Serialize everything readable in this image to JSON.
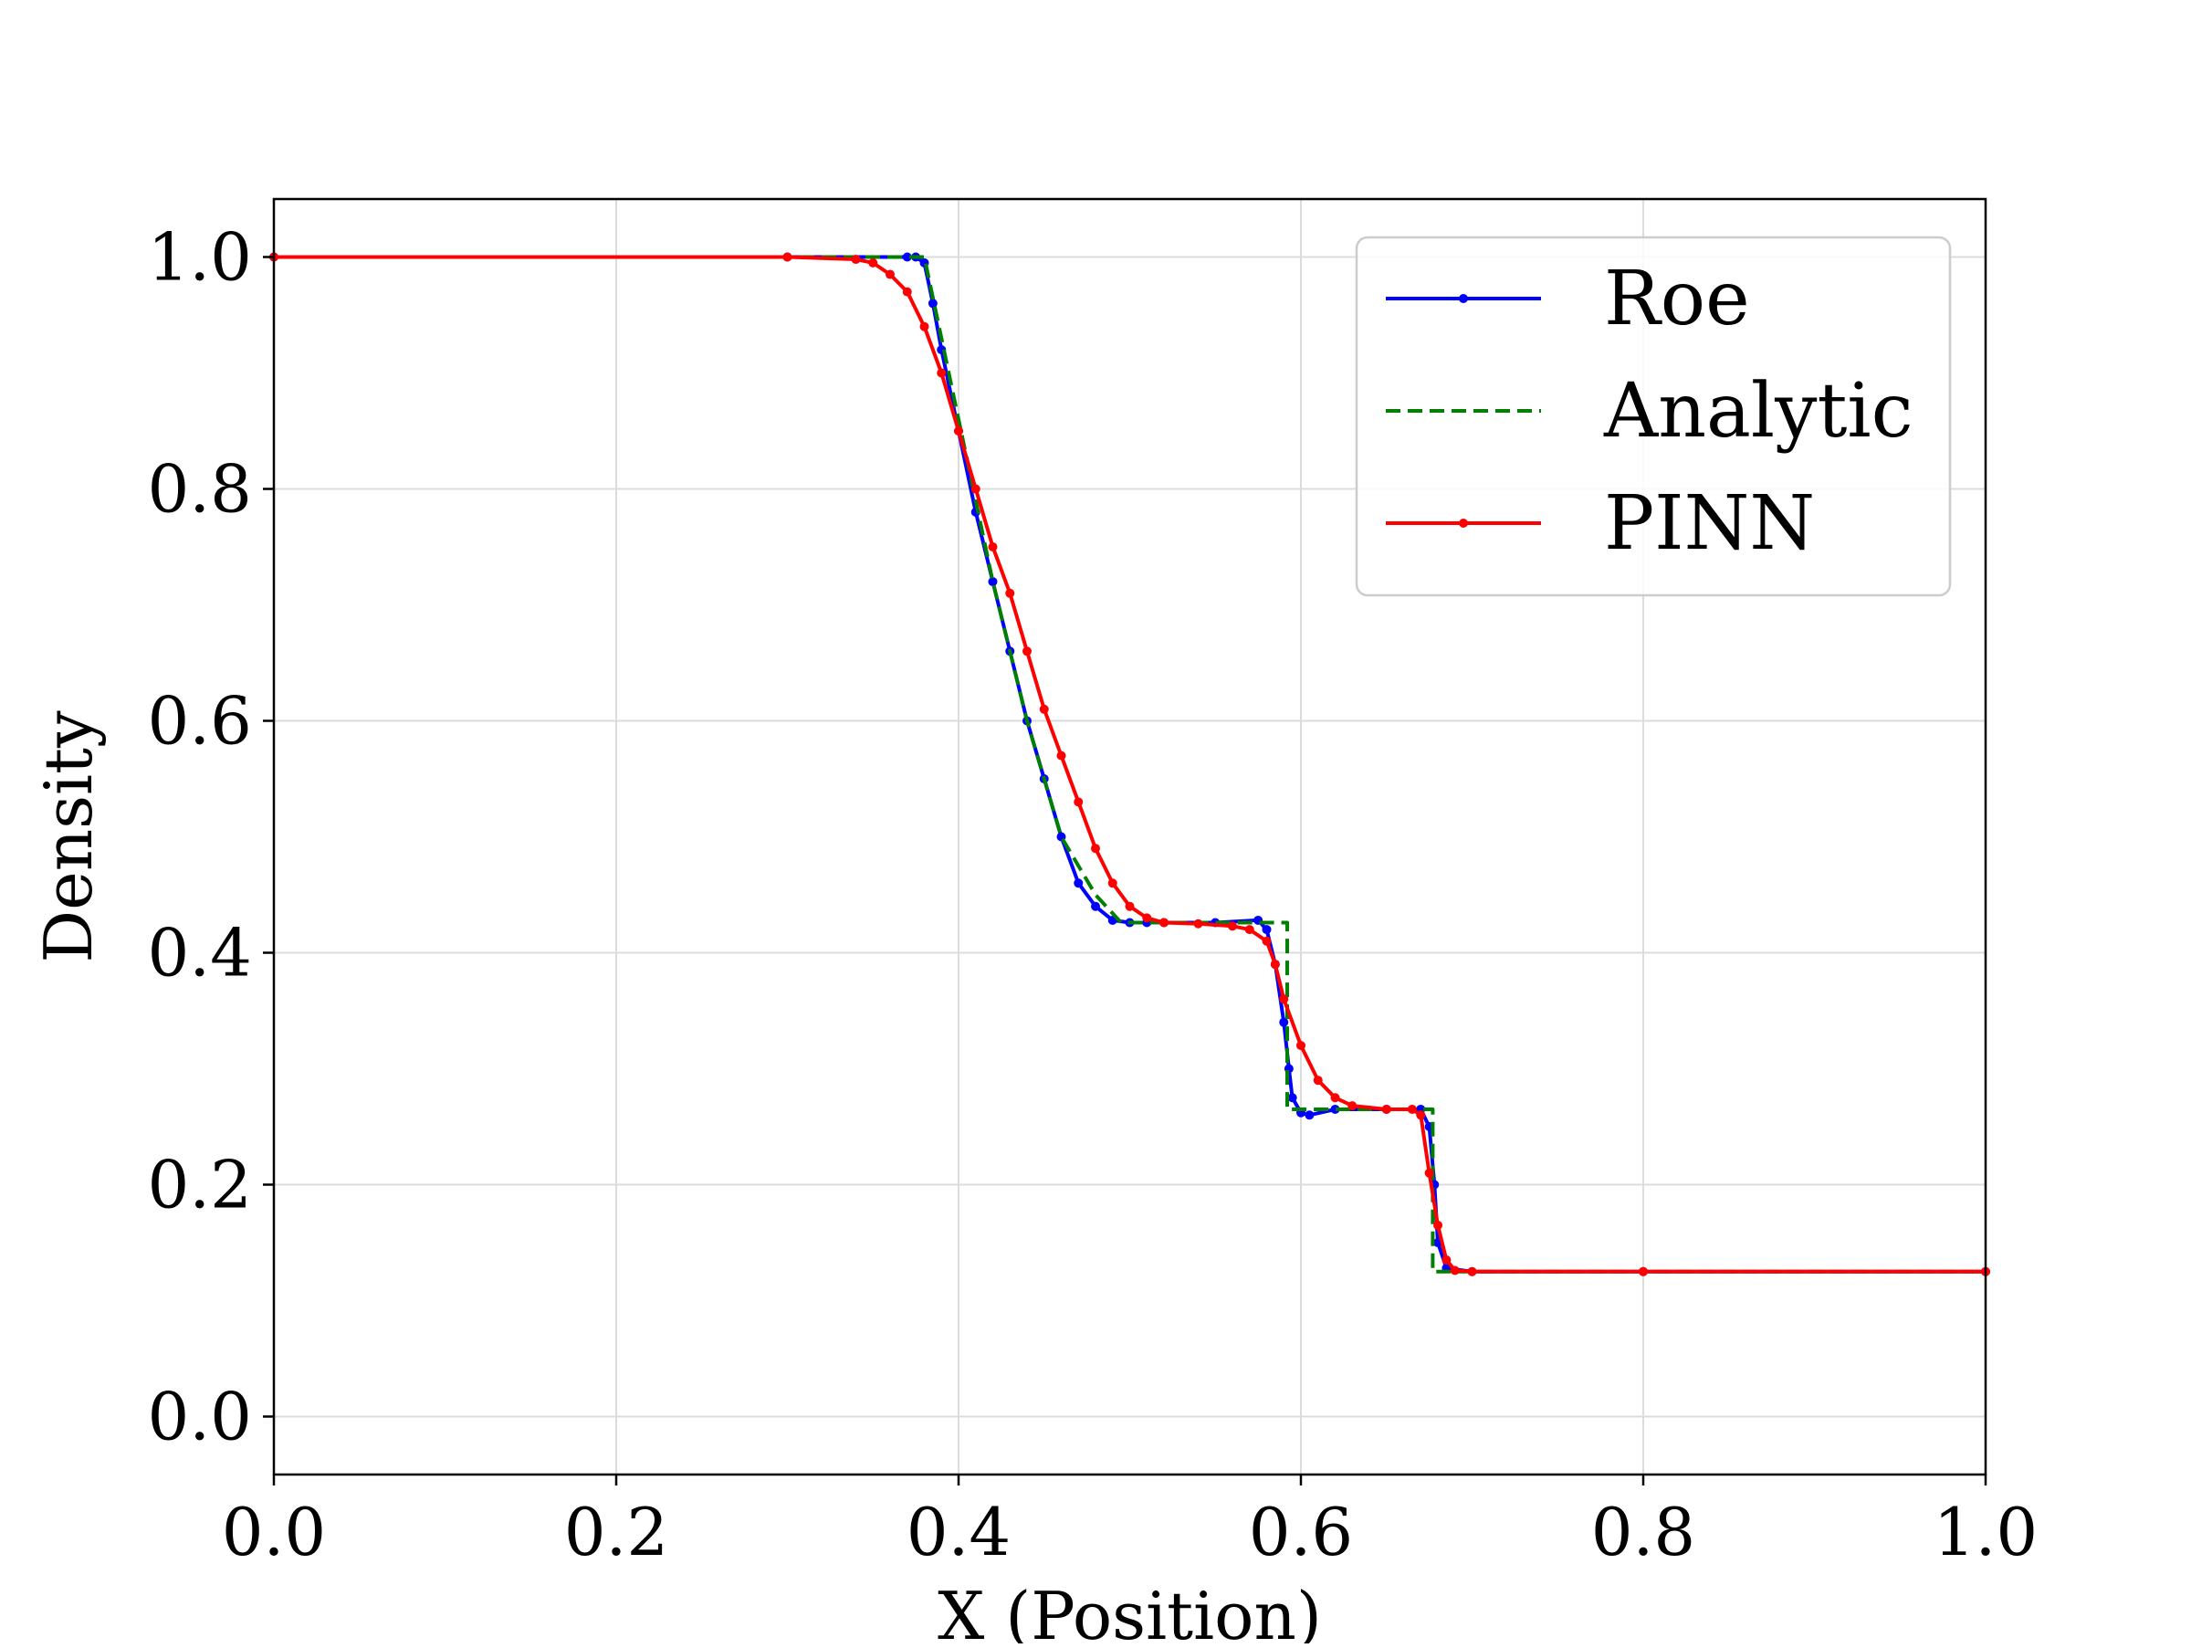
{
  "chart_data": {
    "type": "line",
    "title": "",
    "xlabel": "X (Position)",
    "ylabel": "Density",
    "xlim": [
      0.0,
      1.0
    ],
    "ylim": [
      -0.05,
      1.05
    ],
    "grid": true,
    "legend_position": "top-right",
    "xticks": [
      "0.0",
      "0.2",
      "0.4",
      "0.6",
      "0.8",
      "1.0"
    ],
    "yticks": [
      "0.0",
      "0.2",
      "0.4",
      "0.6",
      "0.8",
      "1.0"
    ],
    "series": [
      {
        "name": "Roe",
        "color": "#0000ff",
        "style": "solid",
        "marker": "dot",
        "x": [
          0.0,
          0.3,
          0.37,
          0.375,
          0.38,
          0.385,
          0.39,
          0.4,
          0.41,
          0.42,
          0.43,
          0.44,
          0.45,
          0.46,
          0.47,
          0.48,
          0.49,
          0.5,
          0.51,
          0.52,
          0.55,
          0.575,
          0.58,
          0.585,
          0.59,
          0.593,
          0.595,
          0.6,
          0.605,
          0.62,
          0.65,
          0.67,
          0.675,
          0.678,
          0.68,
          0.685,
          0.7,
          0.8,
          1.0
        ],
        "y": [
          1.0,
          1.0,
          1.0,
          1.0,
          0.995,
          0.96,
          0.92,
          0.85,
          0.78,
          0.72,
          0.66,
          0.6,
          0.55,
          0.5,
          0.46,
          0.44,
          0.428,
          0.426,
          0.426,
          0.426,
          0.426,
          0.428,
          0.42,
          0.39,
          0.34,
          0.3,
          0.275,
          0.262,
          0.26,
          0.265,
          0.265,
          0.265,
          0.25,
          0.2,
          0.15,
          0.128,
          0.125,
          0.125,
          0.125
        ]
      },
      {
        "name": "Analytic",
        "color": "#008000",
        "style": "dashed",
        "marker": "none",
        "x": [
          0.0,
          0.38,
          0.4,
          0.42,
          0.44,
          0.46,
          0.48,
          0.495,
          0.5,
          0.592,
          0.592,
          0.677,
          0.677,
          1.0
        ],
        "y": [
          1.0,
          1.0,
          0.86,
          0.72,
          0.6,
          0.5,
          0.45,
          0.426,
          0.426,
          0.426,
          0.265,
          0.265,
          0.125,
          0.125
        ]
      },
      {
        "name": "PINN",
        "color": "#ff0000",
        "style": "solid",
        "marker": "dot",
        "x": [
          0.0,
          0.3,
          0.34,
          0.35,
          0.36,
          0.37,
          0.38,
          0.39,
          0.4,
          0.41,
          0.42,
          0.43,
          0.44,
          0.45,
          0.46,
          0.47,
          0.48,
          0.49,
          0.5,
          0.51,
          0.52,
          0.54,
          0.56,
          0.57,
          0.58,
          0.585,
          0.59,
          0.6,
          0.61,
          0.62,
          0.63,
          0.65,
          0.665,
          0.67,
          0.675,
          0.68,
          0.685,
          0.69,
          0.7,
          0.8,
          1.0
        ],
        "y": [
          1.0,
          1.0,
          0.998,
          0.995,
          0.985,
          0.97,
          0.94,
          0.9,
          0.85,
          0.8,
          0.75,
          0.71,
          0.66,
          0.61,
          0.57,
          0.53,
          0.49,
          0.46,
          0.44,
          0.43,
          0.426,
          0.425,
          0.423,
          0.42,
          0.41,
          0.39,
          0.36,
          0.32,
          0.29,
          0.275,
          0.268,
          0.265,
          0.265,
          0.26,
          0.21,
          0.165,
          0.135,
          0.126,
          0.125,
          0.125,
          0.125
        ]
      }
    ]
  }
}
